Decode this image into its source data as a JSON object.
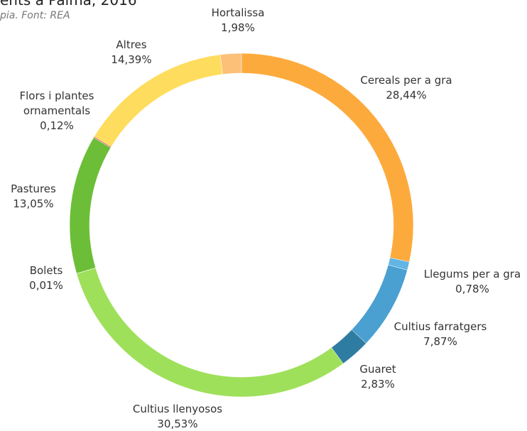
{
  "chart_data": {
    "type": "donut",
    "title": "ents a Palma, 2016",
    "subtitle": "pia. Font: REA",
    "categories": [
      "Cereals per a gra",
      "Llegums per a gra",
      "Cultius farratgers",
      "Guaret",
      "Cultius llenyosos",
      "Bolets",
      "Pastures",
      "Flors i plantes ornamentals",
      "Altres",
      "Hortalissa"
    ],
    "values": [
      28.44,
      0.78,
      7.87,
      2.83,
      30.53,
      0.01,
      13.05,
      0.12,
      14.39,
      1.98
    ],
    "value_labels": [
      "28,44%",
      "0,78%",
      "7,87%",
      "2,83%",
      "30,53%",
      "0,01%",
      "13,05%",
      "0,12%",
      "14,39%",
      "1,98%"
    ],
    "colors": [
      "#fdaa3d",
      "#63b6e3",
      "#4aa0d0",
      "#2f7ca2",
      "#9fe05b",
      "#7cd040",
      "#6cbe38",
      "#e8705a",
      "#fedd5e",
      "#fdc079"
    ]
  }
}
